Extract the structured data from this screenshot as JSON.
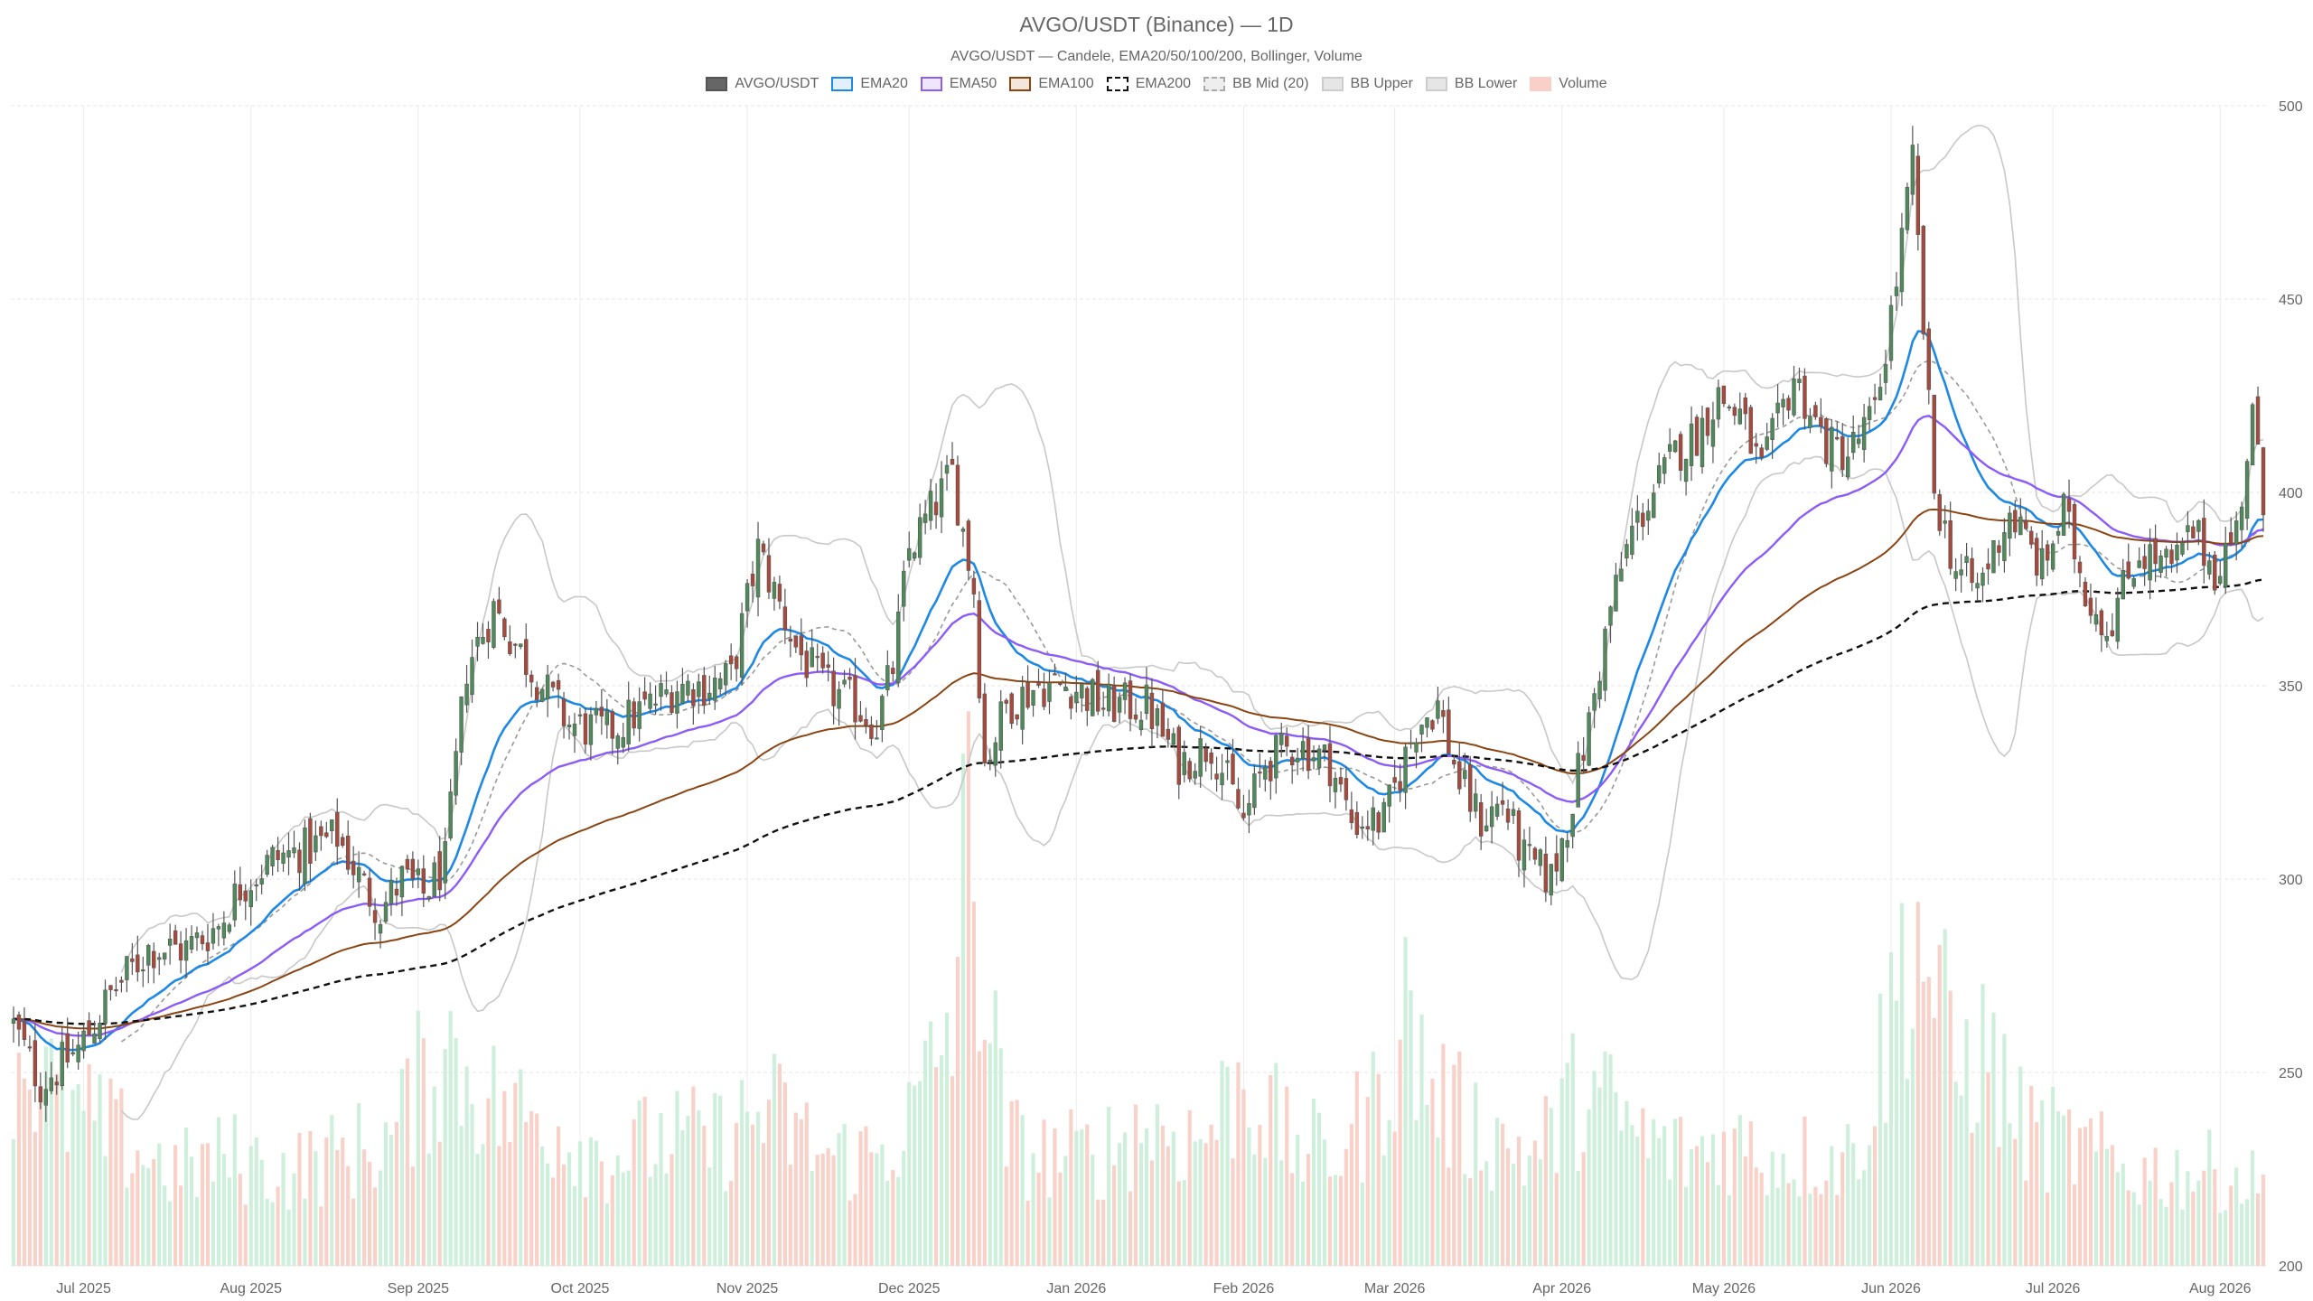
{
  "title": "AVGO/USDT (Binance) — 1D",
  "subtitle": "AVGO/USDT — Candele, EMA20/50/100/200, Bollinger, Volume",
  "legend": [
    {
      "label": "AVGO/USDT",
      "fill": "#666666",
      "border": "#555555",
      "dash": false
    },
    {
      "label": "EMA20",
      "fill": "#e3f0fc",
      "border": "#1e88e5",
      "dash": false
    },
    {
      "label": "EMA50",
      "fill": "#efe6fb",
      "border": "#8b5cf6",
      "dash": false
    },
    {
      "label": "EMA100",
      "fill": "#f3e7dd",
      "border": "#8b4513",
      "dash": false
    },
    {
      "label": "EMA200",
      "fill": "#ffffff",
      "border": "#111111",
      "dash": true
    },
    {
      "label": "BB Mid (20)",
      "fill": "#eeeeee",
      "border": "#aaaaaa",
      "dash": true
    },
    {
      "label": "BB Upper",
      "fill": "#e6e6e6",
      "border": "#cccccc",
      "dash": false
    },
    {
      "label": "BB Lower",
      "fill": "#e6e6e6",
      "border": "#cccccc",
      "dash": false
    },
    {
      "label": "Volume",
      "fill": "#f8d0c8",
      "border": "#f8d0c8",
      "dash": false
    }
  ],
  "chart_data": {
    "type": "candlestick",
    "y_axis": {
      "min": 200,
      "max": 500,
      "ticks": [
        200,
        250,
        300,
        350,
        400,
        450,
        500
      ],
      "position": "right"
    },
    "x_ticks": [
      {
        "label": "Jul 2025",
        "day": 13
      },
      {
        "label": "Aug 2025",
        "day": 44
      },
      {
        "label": "Sep 2025",
        "day": 75
      },
      {
        "label": "Oct 2025",
        "day": 105
      },
      {
        "label": "Nov 2025",
        "day": 136
      },
      {
        "label": "Dec 2025",
        "day": 166
      },
      {
        "label": "Jan 2026",
        "day": 197
      },
      {
        "label": "Feb 2026",
        "day": 228
      },
      {
        "label": "Mar 2026",
        "day": 256
      },
      {
        "label": "Apr 2026",
        "day": 287
      },
      {
        "label": "May 2026",
        "day": 317
      },
      {
        "label": "Jun 2026",
        "day": 348
      },
      {
        "label": "Jul 2026",
        "day": 378
      },
      {
        "label": "Aug 2026",
        "day": 409
      }
    ],
    "num_days": 418,
    "close_keypoints": [
      [
        0,
        262
      ],
      [
        5,
        247
      ],
      [
        12,
        256
      ],
      [
        18,
        270
      ],
      [
        25,
        282
      ],
      [
        32,
        282
      ],
      [
        38,
        288
      ],
      [
        42,
        298
      ],
      [
        48,
        305
      ],
      [
        55,
        308
      ],
      [
        60,
        311
      ],
      [
        65,
        298
      ],
      [
        68,
        292
      ],
      [
        72,
        300
      ],
      [
        76,
        296
      ],
      [
        80,
        304
      ],
      [
        84,
        355
      ],
      [
        89,
        370
      ],
      [
        92,
        363
      ],
      [
        98,
        350
      ],
      [
        103,
        340
      ],
      [
        110,
        338
      ],
      [
        118,
        345
      ],
      [
        123,
        350
      ],
      [
        128,
        350
      ],
      [
        133,
        352
      ],
      [
        138,
        385
      ],
      [
        145,
        360
      ],
      [
        150,
        350
      ],
      [
        156,
        345
      ],
      [
        160,
        340
      ],
      [
        163,
        355
      ],
      [
        166,
        385
      ],
      [
        170,
        395
      ],
      [
        174,
        405
      ],
      [
        178,
        375
      ],
      [
        180,
        330
      ],
      [
        184,
        345
      ],
      [
        190,
        350
      ],
      [
        196,
        350
      ],
      [
        202,
        345
      ],
      [
        210,
        345
      ],
      [
        216,
        330
      ],
      [
        222,
        335
      ],
      [
        228,
        315
      ],
      [
        232,
        330
      ],
      [
        238,
        335
      ],
      [
        244,
        330
      ],
      [
        248,
        315
      ],
      [
        254,
        315
      ],
      [
        260,
        340
      ],
      [
        264,
        345
      ],
      [
        268,
        325
      ],
      [
        272,
        315
      ],
      [
        276,
        320
      ],
      [
        280,
        305
      ],
      [
        285,
        300
      ],
      [
        288,
        315
      ],
      [
        292,
        340
      ],
      [
        296,
        370
      ],
      [
        300,
        390
      ],
      [
        304,
        400
      ],
      [
        308,
        410
      ],
      [
        312,
        415
      ],
      [
        316,
        425
      ],
      [
        320,
        420
      ],
      [
        324,
        405
      ],
      [
        330,
        430
      ],
      [
        336,
        412
      ],
      [
        340,
        410
      ],
      [
        345,
        420
      ],
      [
        349,
        455
      ],
      [
        352,
        485
      ],
      [
        356,
        400
      ],
      [
        360,
        380
      ],
      [
        364,
        375
      ],
      [
        370,
        395
      ],
      [
        376,
        380
      ],
      [
        380,
        395
      ],
      [
        384,
        375
      ],
      [
        388,
        365
      ],
      [
        394,
        385
      ],
      [
        400,
        380
      ],
      [
        404,
        390
      ],
      [
        408,
        380
      ],
      [
        412,
        390
      ],
      [
        415,
        420
      ],
      [
        417,
        395
      ]
    ],
    "volume_keypoints": [
      [
        0,
        14
      ],
      [
        10,
        10
      ],
      [
        20,
        8
      ],
      [
        30,
        6
      ],
      [
        40,
        7
      ],
      [
        50,
        6
      ],
      [
        60,
        7
      ],
      [
        70,
        8
      ],
      [
        76,
        12
      ],
      [
        80,
        14
      ],
      [
        85,
        12
      ],
      [
        90,
        10
      ],
      [
        100,
        9
      ],
      [
        110,
        7
      ],
      [
        120,
        8
      ],
      [
        130,
        8
      ],
      [
        140,
        10
      ],
      [
        150,
        7
      ],
      [
        160,
        7
      ],
      [
        166,
        9
      ],
      [
        170,
        12
      ],
      [
        174,
        16
      ],
      [
        177,
        28
      ],
      [
        180,
        18
      ],
      [
        184,
        8
      ],
      [
        190,
        7
      ],
      [
        200,
        7
      ],
      [
        210,
        9
      ],
      [
        220,
        8
      ],
      [
        228,
        12
      ],
      [
        236,
        8
      ],
      [
        244,
        7
      ],
      [
        252,
        10
      ],
      [
        258,
        16
      ],
      [
        262,
        12
      ],
      [
        266,
        10
      ],
      [
        270,
        9
      ],
      [
        276,
        8
      ],
      [
        282,
        7
      ],
      [
        290,
        11
      ],
      [
        296,
        10
      ],
      [
        302,
        8
      ],
      [
        310,
        7
      ],
      [
        318,
        8
      ],
      [
        326,
        7
      ],
      [
        334,
        7
      ],
      [
        340,
        7
      ],
      [
        344,
        10
      ],
      [
        348,
        16
      ],
      [
        352,
        22
      ],
      [
        356,
        18
      ],
      [
        360,
        12
      ],
      [
        364,
        14
      ],
      [
        368,
        12
      ],
      [
        372,
        9
      ],
      [
        378,
        8
      ],
      [
        386,
        7
      ],
      [
        392,
        6
      ],
      [
        400,
        6
      ],
      [
        410,
        6
      ],
      [
        417,
        5
      ]
    ],
    "volume_axis_max": 30,
    "ema_periods": [
      20,
      50,
      100,
      200
    ],
    "bollinger": {
      "period": 20,
      "stddev": 2
    }
  }
}
